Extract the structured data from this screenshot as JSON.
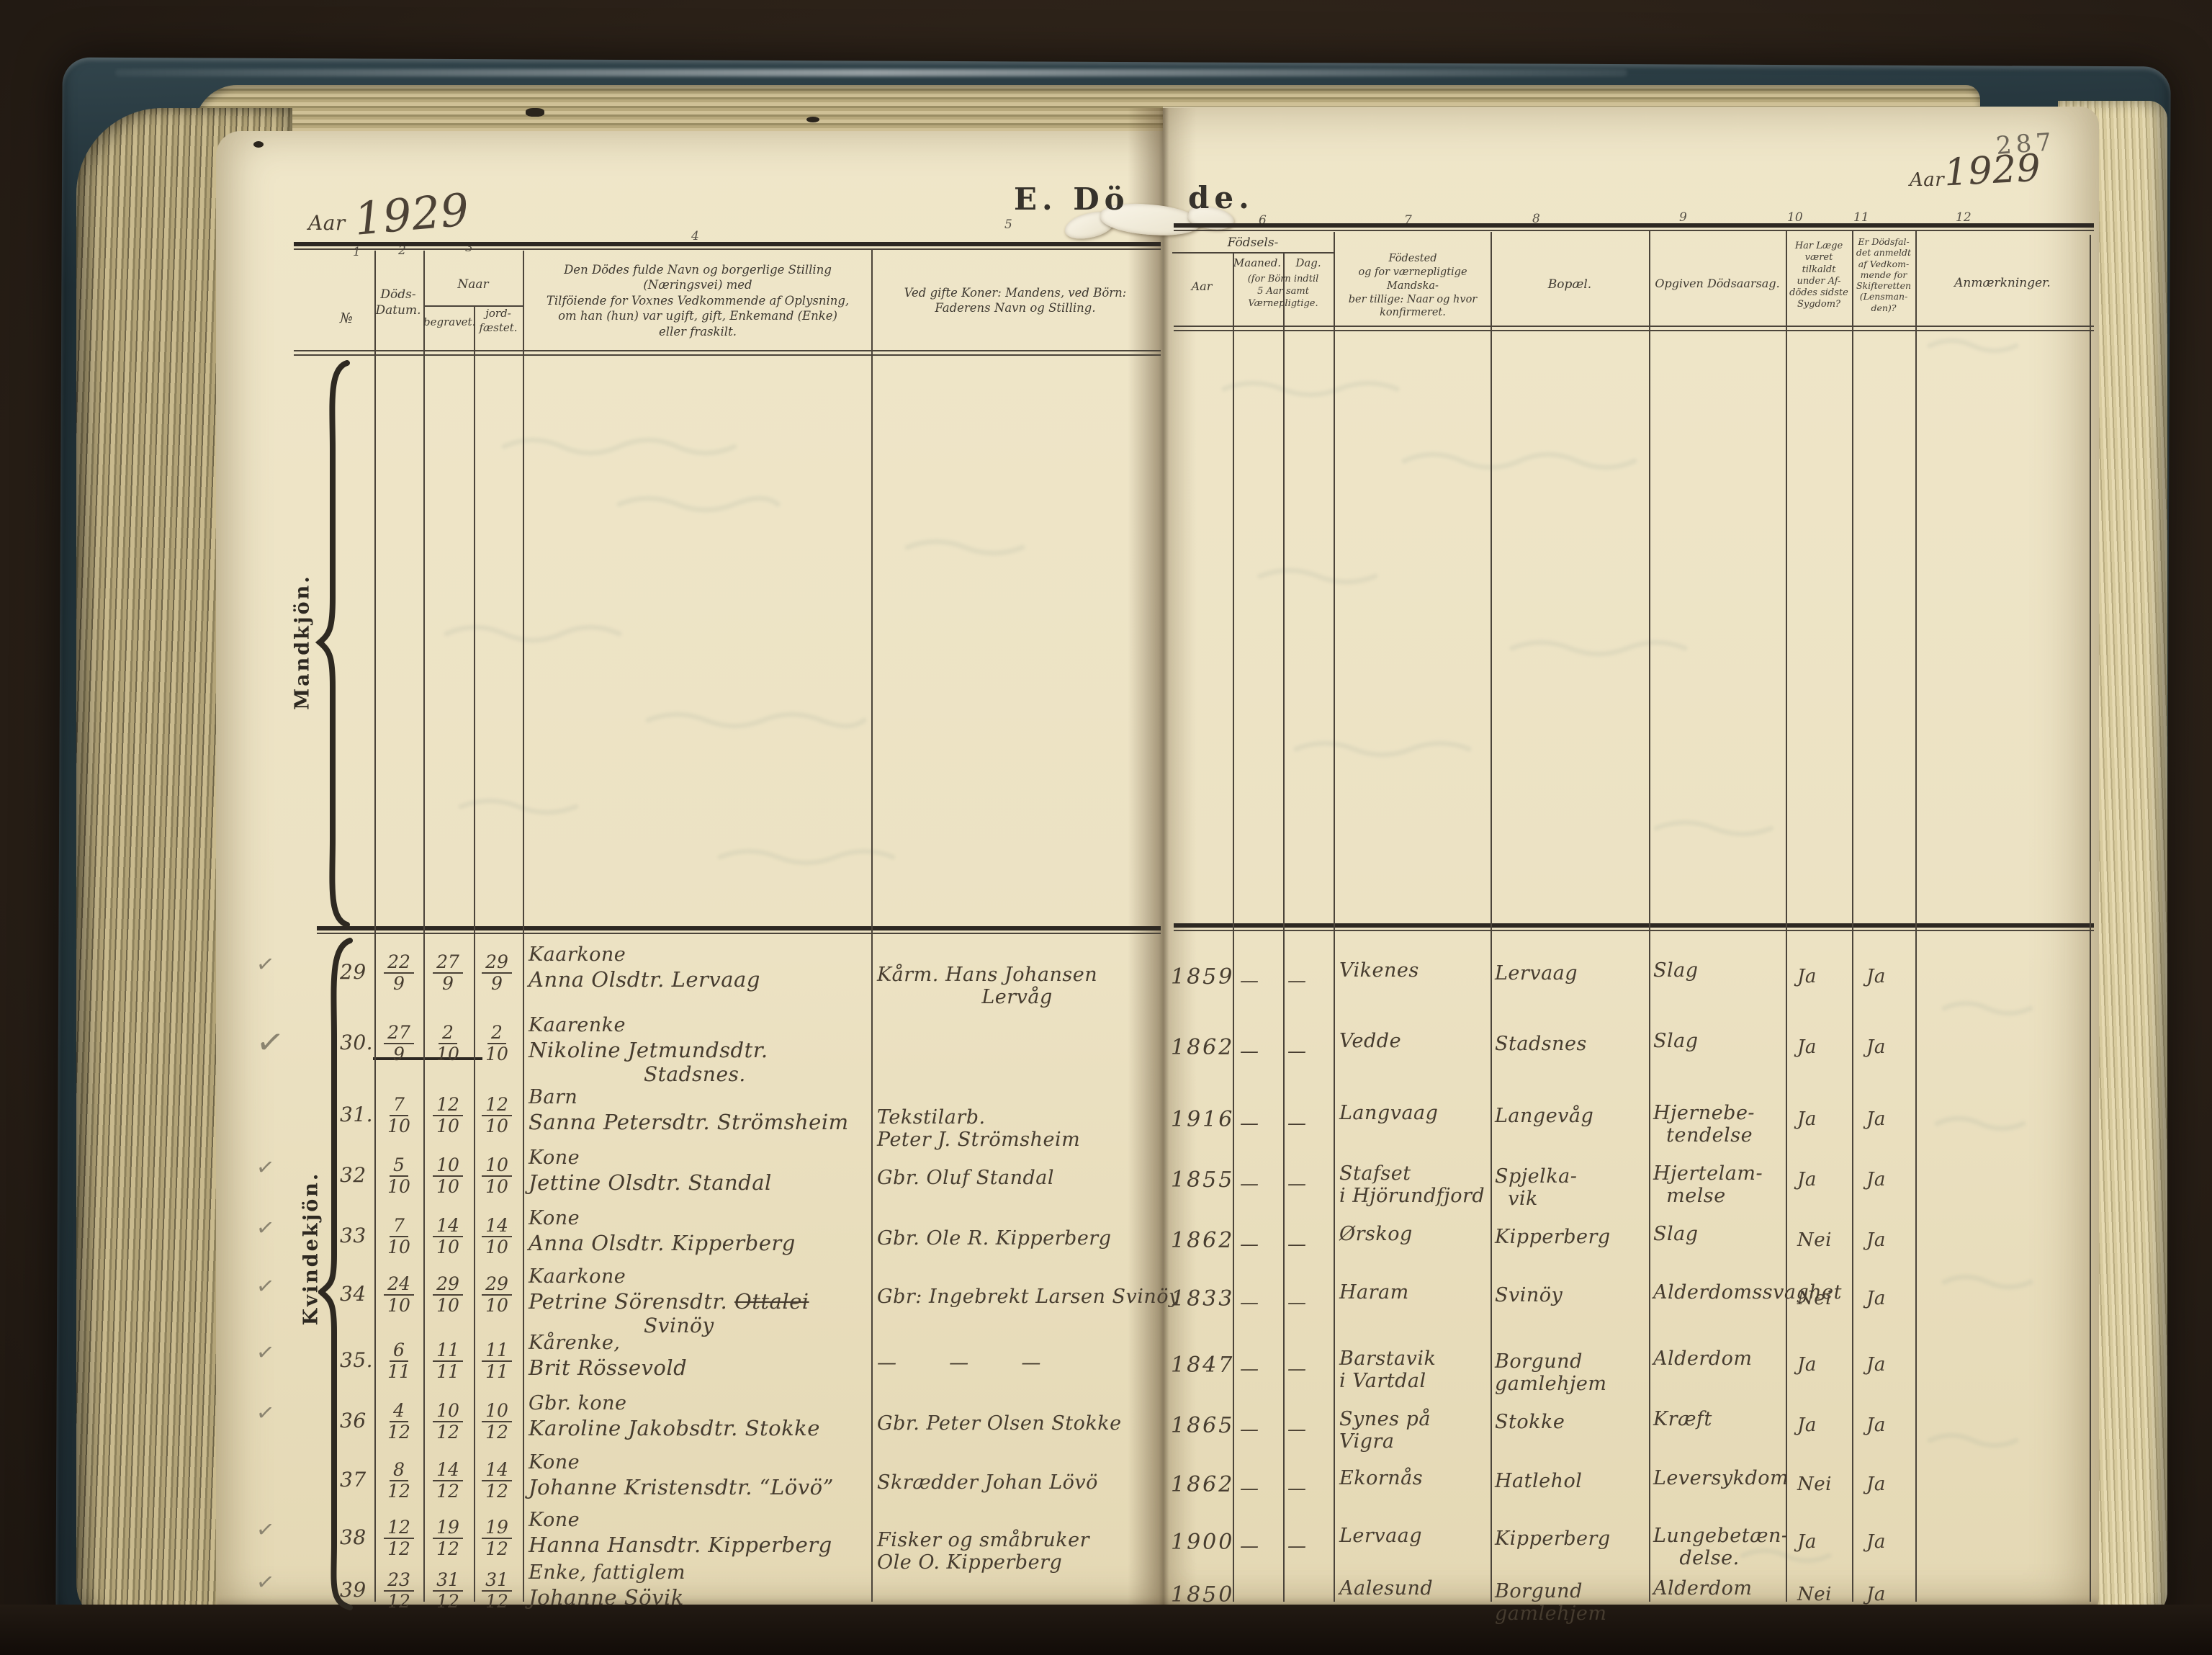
{
  "photo": {
    "description_left_year": "1929",
    "description_right_year": "1929"
  },
  "pages": {
    "left": {
      "aar_label": "Aar",
      "year": "1929",
      "title_fragment": "E. Dö"
    },
    "right": {
      "aar_label": "Aar",
      "year": "1929",
      "title_fragment": "de.",
      "page_number": "287"
    },
    "section_labels": {
      "top": "Mandkjön.",
      "bottom": "Kvindekjön."
    }
  },
  "header": {
    "col_numbers": [
      "1",
      "2",
      "3",
      "4",
      "5",
      "6",
      "7",
      "8",
      "9",
      "10",
      "11",
      "12"
    ],
    "no": "№",
    "dods_datum": "Döds-\nDatum.",
    "naar": "Naar",
    "begravet": "begravet.",
    "jordfaestet": "jord-\nfæstet.",
    "col4": "Den Dödes fulde Navn og borgerlige Stilling (Næringsvei) med\nTilföiende for Voxnes Vedkommende af Oplysning,\nom han (hun) var ugift, gift, Enkemand (Enke)\neller fraskilt.",
    "col5": "Ved gifte Koner: Mandens, ved Börn:\nFaderens Navn og Stilling.",
    "fodsels": "Födsels-",
    "fodsels_aar": "Aar",
    "maaned": "Maaned.",
    "dag": "Dag.",
    "fodsels_note": "(for Börn indtil\n5 Aar samt\nVærnepligtige.",
    "fodested": "Födested\nog for værnepligtige Mandska-\nber tillige: Naar og hvor\nkonfirmeret.",
    "bopael": "Bopæl.",
    "dodsaarsag": "Opgiven Dödsaarsag.",
    "laege": "Har Læge\nværet\ntilkaldt\nunder Af-\ndödes sidste\nSygdom?",
    "skifteretten": "Er Dödsfal-\ndet anmeldt\naf Vedkom-\nmende for\nSkifteretten\n(Lensman-\nden)?",
    "anmaerkninger": "Anmærkninger."
  },
  "rows": [
    {
      "check": "✓",
      "no": "29",
      "dodsdatum": "22/9",
      "begravet": "27/9",
      "jordfaestet": "29/9",
      "status": "Kaarkone",
      "name": "Anna Olsdtr. Lervaag",
      "struck": "",
      "name2": "",
      "spouse": "Kårm. Hans Johansen\n                Lervåg",
      "aar": "1859",
      "maaned": "—",
      "dag": "—",
      "fodested": "Vikenes",
      "bopael": "Lervaag",
      "aarsag": "Slag",
      "laege": "Ja",
      "skifte": "Ja"
    },
    {
      "check": "✓",
      "no": "30.",
      "dodsdatum": "27/9",
      "begravet": "2/10",
      "jordfaestet": "2/10",
      "status": "Kaarenke",
      "name": "Nikoline Jetmundsdtr.",
      "struck": "",
      "name2": "Stadsnes.",
      "spouse": "",
      "aar": "1862",
      "maaned": "—",
      "dag": "—",
      "fodested": "Vedde",
      "bopael": "Stadsnes",
      "aarsag": "Slag",
      "laege": "Ja",
      "skifte": "Ja"
    },
    {
      "check": "",
      "no": "31.",
      "dodsdatum": "7/10",
      "begravet": "12/10",
      "jordfaestet": "12/10",
      "status": "Barn",
      "name": "Sanna Petersdtr. Strömsheim",
      "struck": "",
      "name2": "",
      "spouse": "Tekstilarb.\nPeter J. Strömsheim",
      "aar": "1916",
      "maaned": "—",
      "dag": "—",
      "fodested": "Langvaag",
      "bopael": "Langevåg",
      "aarsag": "Hjernebe-\n  tendelse",
      "laege": "Ja",
      "skifte": "Ja"
    },
    {
      "check": "✓",
      "no": "32",
      "dodsdatum": "5/10",
      "begravet": "10/10",
      "jordfaestet": "10/10",
      "status": "Kone",
      "name": "Jettine Olsdtr. Standal",
      "struck": "",
      "name2": "",
      "spouse": "Gbr. Oluf Standal",
      "aar": "1855",
      "maaned": "—",
      "dag": "—",
      "fodested": "Stafset\ni Hjörundfjord",
      "bopael": "Spjelka-\n  vik",
      "aarsag": "Hjertelam-\n  melse",
      "laege": "Ja",
      "skifte": "Ja"
    },
    {
      "check": "✓",
      "no": "33",
      "dodsdatum": "7/10",
      "begravet": "14/10",
      "jordfaestet": "14/10",
      "status": "Kone",
      "name": "Anna Olsdtr. Kipperberg",
      "struck": "",
      "name2": "",
      "spouse": "Gbr. Ole R. Kipperberg",
      "aar": "1862",
      "maaned": "—",
      "dag": "—",
      "fodested": "Ørskog",
      "bopael": "Kipperberg",
      "aarsag": "Slag",
      "laege": "Nei",
      "skifte": "Ja"
    },
    {
      "check": "✓",
      "no": "34",
      "dodsdatum": "24/10",
      "begravet": "29/10",
      "jordfaestet": "29/10",
      "status": "Kaarkone",
      "name": "Petrine Sörensdtr.",
      "struck": "Ottalei",
      "name2": "Svinöy",
      "spouse": "Gbr: Ingebrekt Larsen Svinöy",
      "aar": "1833",
      "maaned": "—",
      "dag": "—",
      "fodested": "Haram",
      "bopael": "Svinöy",
      "aarsag": "Alderdomssvaghet",
      "laege": "Nei",
      "skifte": "Ja"
    },
    {
      "check": "✓",
      "no": "35.",
      "dodsdatum": "6/11",
      "begravet": "11/11",
      "jordfaestet": "11/11",
      "status": "Kårenke,",
      "name": "Brit Rössevold",
      "struck": "",
      "name2": "",
      "spouse": "—        —        —",
      "aar": "1847",
      "maaned": "—",
      "dag": "—",
      "fodested": "Barstavik\ni Vartdal",
      "bopael": "Borgund\ngamlehjem",
      "aarsag": "Alderdom",
      "laege": "Ja",
      "skifte": "Ja"
    },
    {
      "check": "✓",
      "no": "36",
      "dodsdatum": "4/12",
      "begravet": "10/12",
      "jordfaestet": "10/12",
      "status": "Gbr. kone",
      "name": "Karoline Jakobsdtr. Stokke",
      "struck": "",
      "name2": "",
      "spouse": "Gbr. Peter Olsen Stokke",
      "aar": "1865",
      "maaned": "—",
      "dag": "—",
      "fodested": "Synes på\nVigra",
      "bopael": "Stokke",
      "aarsag": "Kræft",
      "laege": "Ja",
      "skifte": "Ja"
    },
    {
      "check": "",
      "no": "37",
      "dodsdatum": "8/12",
      "begravet": "14/12",
      "jordfaestet": "14/12",
      "status": "Kone",
      "name": "Johanne Kristensdtr. “Lövö”",
      "struck": "",
      "name2": "",
      "spouse": "Skrædder Johan Lövö",
      "aar": "1862",
      "maaned": "—",
      "dag": "—",
      "fodested": "Ekornås",
      "bopael": "Hatlehol",
      "aarsag": "Leversykdom",
      "laege": "Nei",
      "skifte": "Ja"
    },
    {
      "check": "✓",
      "no": "38",
      "dodsdatum": "12/12",
      "begravet": "19/12",
      "jordfaestet": "19/12",
      "status": "Kone",
      "name": "Hanna Hansdtr. Kipperberg",
      "struck": "",
      "name2": "",
      "spouse": "Fisker og småbruker\nOle O. Kipperberg",
      "aar": "1900",
      "maaned": "—",
      "dag": "—",
      "fodested": "Lervaag",
      "bopael": "Kipperberg",
      "aarsag": "Lungebetæn-\n    delse.",
      "laege": "Ja",
      "skifte": "Ja"
    },
    {
      "check": "✓",
      "no": "39",
      "dodsdatum": "23/12",
      "begravet": "31/12",
      "jordfaestet": "31/12",
      "status": "Enke, fattiglem",
      "name": "Johanne Sövik",
      "struck": "",
      "name2": "",
      "spouse": "",
      "aar": "1850",
      "maaned": "",
      "dag": "",
      "fodested": "Aalesund",
      "bopael": "Borgund\ngamlehjem",
      "aarsag": "Alderdom",
      "laege": "Nei",
      "skifte": "Ja"
    }
  ]
}
